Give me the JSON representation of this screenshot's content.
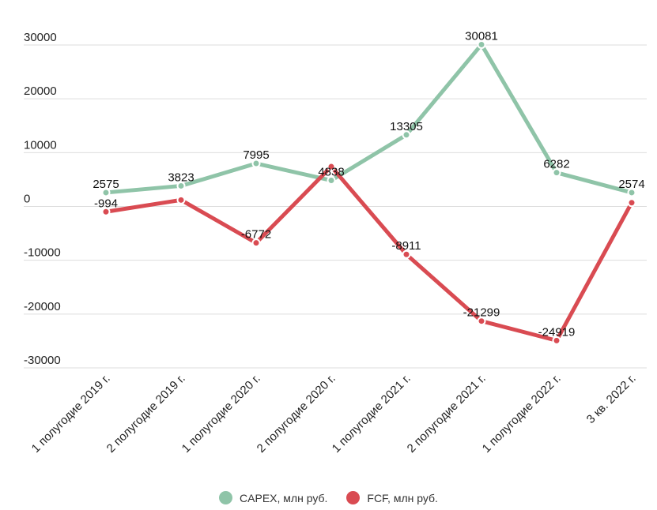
{
  "chart_data": {
    "type": "line",
    "categories": [
      "1 полугодие 2019 г.",
      "2 полугодие 2019 г.",
      "1 полугодие 2020 г.",
      "2 полугодие 2020 г.",
      "1 полугодие 2021 г.",
      "2 полугодие 2021 г.",
      "1 полугодие 2022 г.",
      "3 кв. 2022 г."
    ],
    "series": [
      {
        "name": "CAPEX, млн руб.",
        "color": "#8fc4a8",
        "values": [
          2575,
          3823,
          7995,
          4838,
          13305,
          30081,
          6282,
          2574
        ],
        "labels": [
          "2575",
          "3823",
          "7995",
          "4838",
          "13305",
          "30081",
          "6282",
          "2574"
        ]
      },
      {
        "name": "FCF, млн руб.",
        "color": "#d94b52",
        "values": [
          -994,
          1200,
          -6772,
          7400,
          -8911,
          -21299,
          -24919,
          700
        ],
        "labels": [
          "-994",
          "",
          "-6772",
          "",
          "-8911",
          "-21299",
          "-24919",
          ""
        ]
      }
    ],
    "y_ticks": [
      30000,
      20000,
      10000,
      0,
      -10000,
      -20000,
      -30000
    ],
    "y_tick_labels": [
      "30000",
      "20000",
      "10000",
      "0",
      "-10000",
      "-20000",
      "-30000"
    ],
    "ylim": [
      -30000,
      30000
    ],
    "grid": true,
    "legend_position": "bottom-center",
    "title": "",
    "xlabel": "",
    "ylabel": ""
  }
}
